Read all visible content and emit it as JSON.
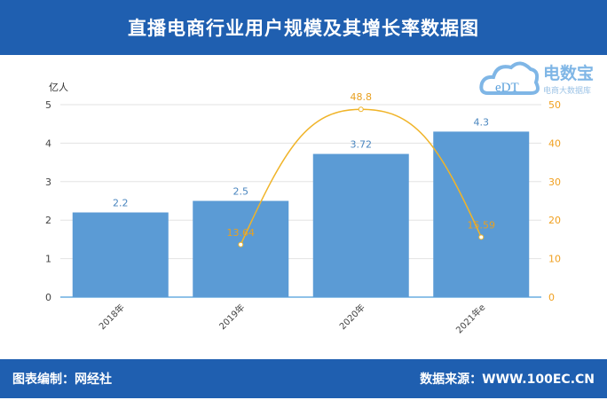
{
  "header": {
    "title": "直播电商行业用户规模及其增长率数据图"
  },
  "footer": {
    "left": "图表编制：网经社",
    "right": "数据来源：WWW.100EC.CN"
  },
  "logo": {
    "text": "电数宝",
    "sub": "电商大数据库",
    "mark": "eDT"
  },
  "colors": {
    "bar": "#5b9bd5",
    "line": "#f0b429",
    "header": "#1f5fb0"
  },
  "chart_data": {
    "type": "bar+line",
    "categories": [
      "2018年",
      "2019年",
      "2020年",
      "2021年e"
    ],
    "ylabel": "亿人",
    "ylim": [
      0,
      5
    ],
    "y2lim": [
      0,
      50
    ],
    "yticks": [
      0,
      1,
      2,
      3,
      4,
      5
    ],
    "y2ticks": [
      0,
      10,
      20,
      30,
      40,
      50
    ],
    "grid": true,
    "series": [
      {
        "type": "bar",
        "axis": "left",
        "values": [
          2.2,
          2.5,
          3.72,
          4.3
        ],
        "labels": [
          "2.2",
          "2.5",
          "3.72",
          "4.3"
        ]
      },
      {
        "type": "line",
        "axis": "right",
        "values": [
          null,
          13.64,
          48.8,
          15.59
        ],
        "labels": [
          "",
          "13.64",
          "48.8",
          "15.59"
        ]
      }
    ]
  }
}
